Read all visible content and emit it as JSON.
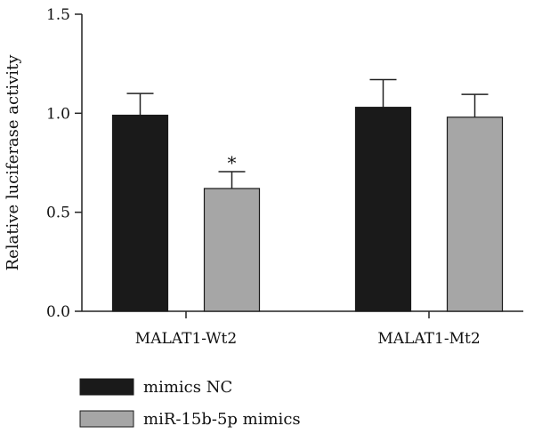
{
  "chart_data": {
    "type": "bar",
    "categories": [
      "MALAT1-Wt2",
      "MALAT1-Mt2"
    ],
    "series": [
      {
        "name": "mimics NC",
        "color": "#1a1a1a",
        "values": [
          0.99,
          1.03
        ],
        "errors": [
          0.11,
          0.14
        ]
      },
      {
        "name": "miR-15b-5p mimics",
        "color": "#a6a6a6",
        "values": [
          0.62,
          0.98
        ],
        "errors": [
          0.085,
          0.115
        ]
      }
    ],
    "title": "",
    "xlabel": "",
    "ylabel": "Relative luciferase activity",
    "ylim": [
      0,
      1.5
    ],
    "yticks": [
      "0.0",
      "0.5",
      "1.0",
      "1.5"
    ],
    "annotations": [
      {
        "category": "MALAT1-Wt2",
        "series": "miR-15b-5p mimics",
        "text": "*"
      }
    ],
    "grid": false,
    "legend_position": "bottom-left"
  }
}
